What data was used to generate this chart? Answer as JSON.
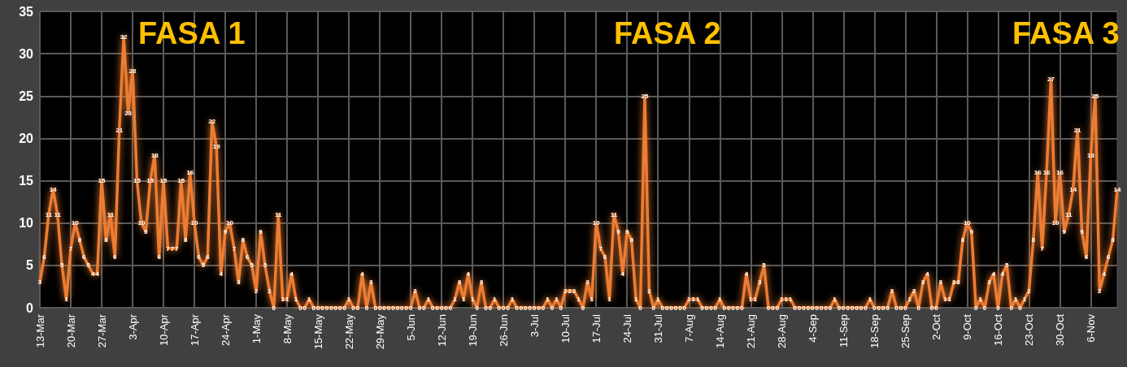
{
  "chart_data": {
    "type": "line",
    "categories": [
      "13-Mar",
      null,
      null,
      null,
      null,
      null,
      null,
      "20-Mar",
      null,
      null,
      null,
      null,
      null,
      null,
      "27-Mar",
      null,
      null,
      null,
      null,
      null,
      null,
      "3-Apr",
      null,
      null,
      null,
      null,
      null,
      null,
      "10-Apr",
      null,
      null,
      null,
      null,
      null,
      null,
      "17-Apr",
      null,
      null,
      null,
      null,
      null,
      null,
      "24-Apr",
      null,
      null,
      null,
      null,
      null,
      null,
      "1-May",
      null,
      null,
      null,
      null,
      null,
      null,
      "8-May",
      null,
      null,
      null,
      null,
      null,
      null,
      "15-May",
      null,
      null,
      null,
      null,
      null,
      null,
      "22-May",
      null,
      null,
      null,
      null,
      null,
      null,
      "29-May",
      null,
      null,
      null,
      null,
      null,
      null,
      "5-Jun",
      null,
      null,
      null,
      null,
      null,
      null,
      "12-Jun",
      null,
      null,
      null,
      null,
      null,
      null,
      "19-Jun",
      null,
      null,
      null,
      null,
      null,
      null,
      "26-Jun",
      null,
      null,
      null,
      null,
      null,
      null,
      "3-Jul",
      null,
      null,
      null,
      null,
      null,
      null,
      "10-Jul",
      null,
      null,
      null,
      null,
      null,
      null,
      "17-Jul",
      null,
      null,
      null,
      null,
      null,
      null,
      "24-Jul",
      null,
      null,
      null,
      null,
      null,
      null,
      "31-Jul",
      null,
      null,
      null,
      null,
      null,
      null,
      "7-Aug",
      null,
      null,
      null,
      null,
      null,
      null,
      "14-Aug",
      null,
      null,
      null,
      null,
      null,
      null,
      "21-Aug",
      null,
      null,
      null,
      null,
      null,
      null,
      "28-Aug",
      null,
      null,
      null,
      null,
      null,
      null,
      "4-Sep",
      null,
      null,
      null,
      null,
      null,
      null,
      "11-Sep",
      null,
      null,
      null,
      null,
      null,
      null,
      "18-Sep",
      null,
      null,
      null,
      null,
      null,
      null,
      "25-Sep",
      null,
      null,
      null,
      null,
      null,
      null,
      "2-Oct",
      null,
      null,
      null,
      null,
      null,
      null,
      "9-Oct",
      null,
      null,
      null,
      null,
      null,
      null,
      "16-Oct",
      null,
      null,
      null,
      null,
      null,
      null,
      "23-Oct",
      null,
      null,
      null,
      null,
      null,
      null,
      "30-Oct",
      null,
      null,
      null,
      null,
      null,
      null,
      "6-Nov",
      null,
      null,
      null,
      null,
      null,
      null
    ],
    "series": [
      {
        "color": "#ed7d31",
        "values": [
          3,
          6,
          11,
          14,
          11,
          5,
          1,
          7,
          10,
          8,
          6,
          5,
          4,
          4,
          15,
          8,
          11,
          6,
          21,
          32,
          23,
          28,
          15,
          10,
          9,
          15,
          18,
          6,
          15,
          7,
          7,
          7,
          15,
          8,
          16,
          10,
          6,
          5,
          6,
          22,
          19,
          4,
          9,
          10,
          7,
          3,
          8,
          6,
          5,
          2,
          9,
          5,
          2,
          0,
          11,
          1,
          1,
          4,
          1,
          0,
          0,
          1,
          0,
          0,
          0,
          0,
          0,
          0,
          0,
          0,
          1,
          0,
          0,
          4,
          0,
          3,
          0,
          0,
          0,
          0,
          0,
          0,
          0,
          0,
          0,
          2,
          0,
          0,
          1,
          0,
          0,
          0,
          0,
          0,
          1,
          3,
          1,
          4,
          1,
          0,
          3,
          0,
          0,
          1,
          0,
          0,
          0,
          1,
          0,
          0,
          0,
          0,
          0,
          0,
          0,
          1,
          0,
          1,
          0,
          2,
          2,
          2,
          1,
          0,
          3,
          1,
          10,
          7,
          6,
          1,
          11,
          9,
          4,
          9,
          8,
          1,
          0,
          25,
          2,
          0,
          1,
          0,
          0,
          0,
          0,
          0,
          0,
          1,
          1,
          1,
          0,
          0,
          0,
          0,
          1,
          0,
          0,
          0,
          0,
          0,
          4,
          1,
          1,
          3,
          5,
          0,
          0,
          0,
          1,
          1,
          1,
          0,
          0,
          0,
          0,
          0,
          0,
          0,
          0,
          0,
          1,
          0,
          0,
          0,
          0,
          0,
          0,
          0,
          1,
          0,
          0,
          0,
          0,
          2,
          0,
          0,
          0,
          1,
          2,
          0,
          3,
          4,
          0,
          0,
          3,
          1,
          1,
          3,
          3,
          8,
          10,
          9,
          0,
          1,
          0,
          3,
          4,
          0,
          4,
          5,
          0,
          1,
          0,
          1,
          2,
          8,
          16,
          7,
          16,
          27,
          10,
          16,
          9,
          11,
          14,
          21,
          9,
          6,
          18,
          25,
          2,
          4,
          6,
          8,
          14
        ]
      }
    ],
    "ylim": [
      0,
      35
    ],
    "yticks": [
      0,
      5,
      10,
      15,
      20,
      25,
      30,
      35
    ],
    "grid": true,
    "data_labels": true,
    "marker": "none",
    "annotations": [
      "FASA 1",
      "FASA 2",
      "FASA 3"
    ]
  }
}
